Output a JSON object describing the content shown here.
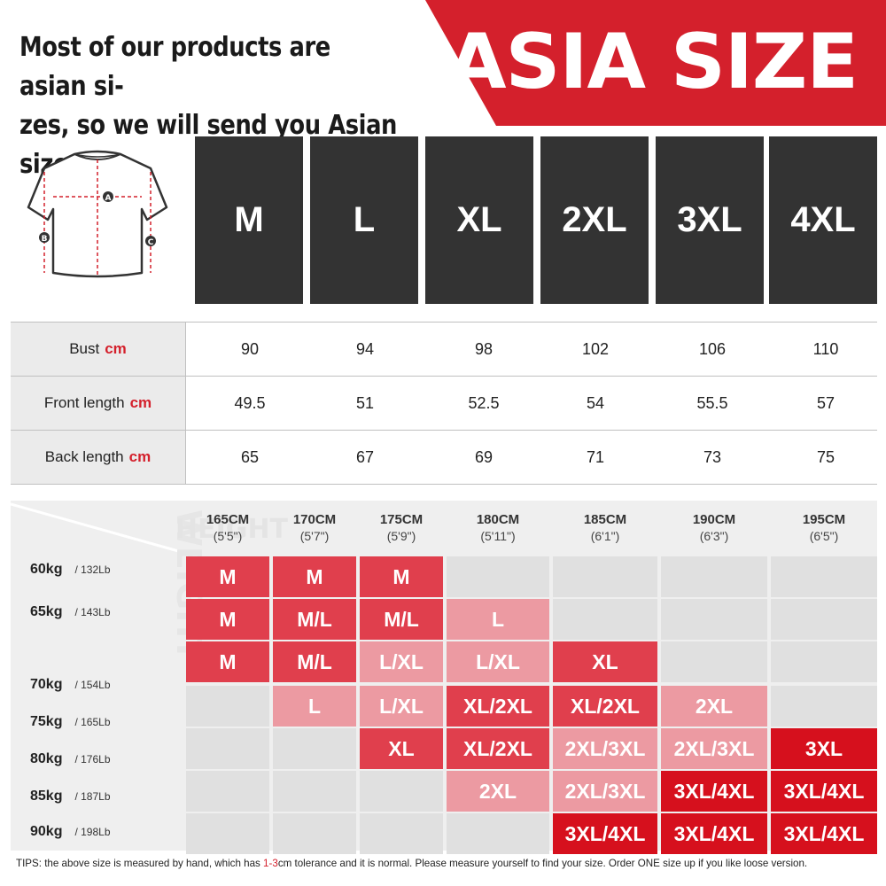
{
  "header": {
    "note_line1": "Most of our products are asian si-",
    "note_line2": "zes, so we will send you Asian sizes",
    "title": "ASIA SIZE"
  },
  "colors": {
    "red": "#d4202c",
    "dark_box": "#333333",
    "mid": "#e03f4d",
    "light": "#ec9aa2",
    "dark": "#d6101d"
  },
  "diagram": {
    "icon": "jersey-icon",
    "markers": [
      "A",
      "B",
      "C"
    ]
  },
  "sizes": [
    "M",
    "L",
    "XL",
    "2XL",
    "3XL",
    "4XL"
  ],
  "measurements": {
    "unit": "cm",
    "rows": [
      {
        "label": "Bust",
        "values": [
          "90",
          "94",
          "98",
          "102",
          "106",
          "110"
        ]
      },
      {
        "label": "Front length",
        "values": [
          "49.5",
          "51",
          "52.5",
          "54",
          "55.5",
          "57"
        ]
      },
      {
        "label": "Back length",
        "values": [
          "65",
          "67",
          "69",
          "71",
          "73",
          "75"
        ]
      }
    ]
  },
  "height_weight": {
    "watermark_height": "HEIGHT",
    "watermark_weight": "WEIGHT",
    "heights": [
      {
        "cm": "165CM",
        "ft": "(5'5\")"
      },
      {
        "cm": "170CM",
        "ft": "(5'7\")"
      },
      {
        "cm": "175CM",
        "ft": "(5'9\")"
      },
      {
        "cm": "180CM",
        "ft": "(5'11\")"
      },
      {
        "cm": "185CM",
        "ft": "(6'1\")"
      },
      {
        "cm": "190CM",
        "ft": "(6'3\")"
      },
      {
        "cm": "195CM",
        "ft": "(6'5\")"
      }
    ],
    "weights": [
      {
        "kg": "60kg",
        "lb": "/ 132Lb"
      },
      {
        "kg": "65kg",
        "lb": "/ 143Lb"
      },
      {
        "kg": "70kg",
        "lb": "/ 154Lb"
      },
      {
        "kg": "75kg",
        "lb": "/ 165Lb"
      },
      {
        "kg": "80kg",
        "lb": "/ 176Lb"
      },
      {
        "kg": "85kg",
        "lb": "/ 187Lb"
      },
      {
        "kg": "90kg",
        "lb": "/ 198Lb"
      }
    ],
    "grid": [
      [
        {
          "t": "M",
          "s": "mid"
        },
        {
          "t": "M",
          "s": "mid"
        },
        {
          "t": "M",
          "s": "mid"
        },
        {
          "t": "",
          "s": "empty"
        },
        {
          "t": "",
          "s": "empty"
        },
        {
          "t": "",
          "s": "empty"
        },
        {
          "t": "",
          "s": "empty"
        }
      ],
      [
        {
          "t": "M",
          "s": "mid"
        },
        {
          "t": "M/L",
          "s": "mid"
        },
        {
          "t": "M/L",
          "s": "mid"
        },
        {
          "t": "L",
          "s": "light"
        },
        {
          "t": "",
          "s": "empty"
        },
        {
          "t": "",
          "s": "empty"
        },
        {
          "t": "",
          "s": "empty"
        }
      ],
      [
        {
          "t": "M",
          "s": "mid"
        },
        {
          "t": "M/L",
          "s": "mid"
        },
        {
          "t": "L/XL",
          "s": "light"
        },
        {
          "t": "L/XL",
          "s": "light"
        },
        {
          "t": "XL",
          "s": "mid"
        },
        {
          "t": "",
          "s": "empty"
        },
        {
          "t": "",
          "s": "empty"
        }
      ],
      [
        {
          "t": "",
          "s": "empty"
        },
        {
          "t": "L",
          "s": "light"
        },
        {
          "t": "L/XL",
          "s": "light"
        },
        {
          "t": "XL/2XL",
          "s": "mid"
        },
        {
          "t": "XL/2XL",
          "s": "mid"
        },
        {
          "t": "2XL",
          "s": "light"
        },
        {
          "t": "",
          "s": "empty"
        }
      ],
      [
        {
          "t": "",
          "s": "empty"
        },
        {
          "t": "",
          "s": "empty"
        },
        {
          "t": "XL",
          "s": "mid"
        },
        {
          "t": "XL/2XL",
          "s": "mid"
        },
        {
          "t": "2XL/3XL",
          "s": "light"
        },
        {
          "t": "2XL/3XL",
          "s": "light"
        },
        {
          "t": "3XL",
          "s": "dark"
        }
      ],
      [
        {
          "t": "",
          "s": "empty"
        },
        {
          "t": "",
          "s": "empty"
        },
        {
          "t": "",
          "s": "empty"
        },
        {
          "t": "2XL",
          "s": "light"
        },
        {
          "t": "2XL/3XL",
          "s": "light"
        },
        {
          "t": "3XL/4XL",
          "s": "dark"
        },
        {
          "t": "3XL/4XL",
          "s": "dark"
        }
      ],
      [
        {
          "t": "",
          "s": "empty"
        },
        {
          "t": "",
          "s": "empty"
        },
        {
          "t": "",
          "s": "empty"
        },
        {
          "t": "",
          "s": "empty"
        },
        {
          "t": "3XL/4XL",
          "s": "dark"
        },
        {
          "t": "3XL/4XL",
          "s": "dark"
        },
        {
          "t": "3XL/4XL",
          "s": "dark"
        }
      ]
    ]
  },
  "tips": {
    "before": "TIPS:  the above size is measured by hand, which has ",
    "highlight": "1-3",
    "after": "cm tolerance and it is normal. Please measure yourself to find your size. Order ONE size up if you like loose version."
  }
}
